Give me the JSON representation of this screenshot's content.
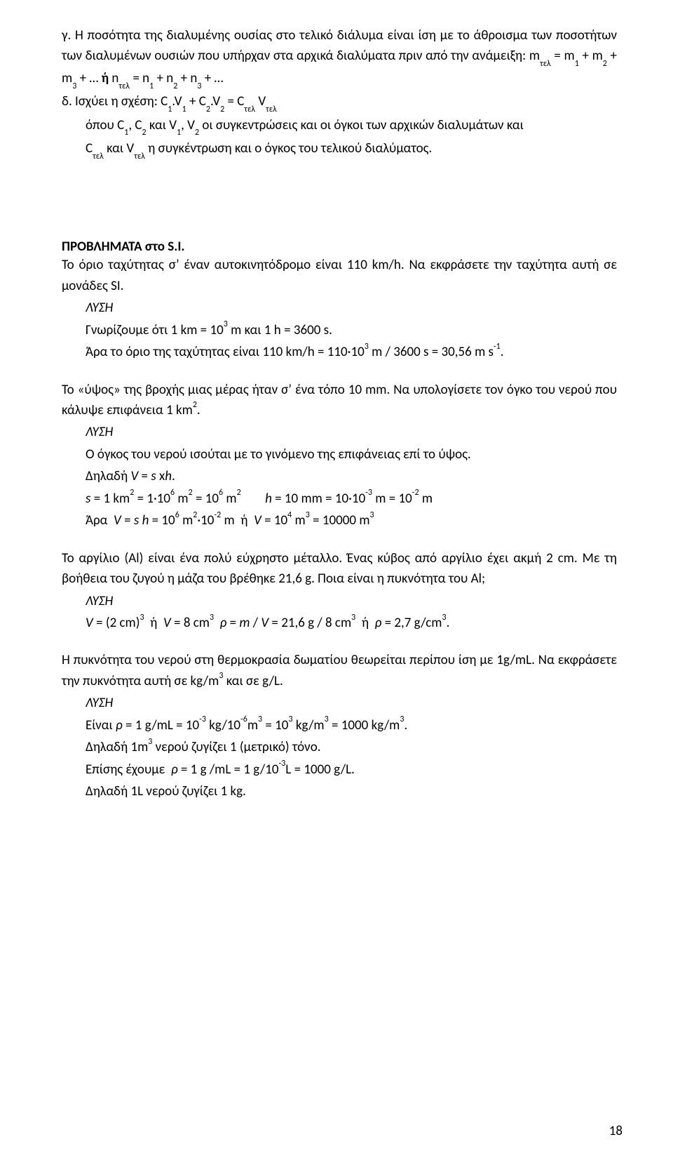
{
  "block_c": {
    "line1": "γ. Η ποσότητα της διαλυμένης ουσίας στο τελικό διάλυμα είναι ίση με το άθροισμα των ποσοτήτων των διαλυμένων ουσιών που υπήρχαν στα αρχικά διαλύματα πριν από την ανάμειξη: m<span class=\"sub\">τελ</span> = m<span class=\"sub\">1</span> + m<span class=\"sub\">2</span> + m<span class=\"sub\">3</span> + …  <b>ή</b>  n<span class=\"sub\">τελ</span> = n<span class=\"sub\">1</span> + n<span class=\"sub\">2</span> + n<span class=\"sub\">3</span> + …"
  },
  "block_d": {
    "line1": "δ. Ισχύει η σχέση: C<span class=\"sub\">1</span>.V<span class=\"sub\">1</span> + C<span class=\"sub\">2</span>.V<span class=\"sub\">2</span> = C<span class=\"sub\">τελ</span>  V<span class=\"sub\">τελ</span>",
    "line2": "όπου C<span class=\"sub\">1</span>, C<span class=\"sub\">2</span> και V<span class=\"sub\">1</span>, V<span class=\"sub\">2</span> οι συγκεντρώσεις και οι όγκοι των αρχικών διαλυμάτων και",
    "line3": "C<span class=\"sub\">τελ</span> και V<span class=\"sub\">τελ</span> η συγκέντρωση και ο όγκος του τελικού διαλύματος."
  },
  "problems_heading": "ΠΡΟΒΛΗΜΑΤΑ στο S.I.",
  "p1": {
    "stmt": "Το όριο ταχύτητας σ’ έναν αυτοκινητόδρομο είναι 110 km/h. Να εκφράσετε την ταχύτητα αυτή σε μονάδες SI.",
    "sol_label": "ΛΥΣΗ",
    "l1": "Γνωρίζουμε ότι 1 km = 10<span class=\"sup\">3</span> m και 1 h = 3600 s.",
    "l2": "Άρα το όριο της ταχύτητας είναι 110 km/h = 110·10<span class=\"sup\">3</span> m / 3600 s = 30,56 m s<span class=\"sup\">-1</span>."
  },
  "p2": {
    "stmt": "Το «ύψος» της βροχής μιας μέρας ήταν σ’ ένα τόπο 10 mm. Να υπολογίσετε τον όγκο του νερού που κάλυψε επιφάνεια 1 km<span class=\"sup\">2</span>.",
    "sol_label": "ΛΥΣΗ",
    "l1": "Ο όγκος του νερού ισούται με το γινόμενο της επιφάνειας επί το ύψος.",
    "l2": "Δηλαδή <span class=\"italic\">V</span> = <span class=\"italic\">s</span> x<span class=\"italic\">h</span>.",
    "l3": "<span class=\"italic\">s</span> = 1 km<span class=\"sup\">2</span> = 1·10<span class=\"sup\">6</span> m<span class=\"sup\">2</span> = 10<span class=\"sup\">6</span> m<span class=\"sup\">2</span>&nbsp;&nbsp;&nbsp;&nbsp;&nbsp;&nbsp;&nbsp;&nbsp;<span class=\"italic\">h</span> = 10 mm = 10·10<span class=\"sup\">-3</span> m = 10<span class=\"sup\">-2</span> m",
    "l4": "Άρα &nbsp;<span class=\"italic\">V</span> = <span class=\"italic\">s h</span> = 10<span class=\"sup\">6</span> m<span class=\"sup\">2</span>·10<span class=\"sup\">-2</span> m &nbsp;ή&nbsp; <span class=\"italic\">V</span> = 10<span class=\"sup\">4</span> m<span class=\"sup\">3</span> = 10000 m<span class=\"sup\">3</span>"
  },
  "p3": {
    "stmt": "Το αργίλιο (Al) είναι ένα πολύ εύχρηστο μέταλλο. Ένας κύβος από αργίλιο έχει ακμή 2 cm. Με τη βοήθεια του ζυγού η μάζα του βρέθηκε 21,6 g. Ποια είναι η πυκνότητα του Al;",
    "sol_label": "ΛΥΣΗ",
    "l1": "<span class=\"italic\">V</span> = (2 cm)<span class=\"sup\">3</span> &nbsp;ή&nbsp; <span class=\"italic\">V</span> = 8 cm<span class=\"sup\">3</span> &nbsp;<span class=\"italic\">ρ</span> = <span class=\"italic\">m</span> / <span class=\"italic\">V</span> = 21,6 g / 8 cm<span class=\"sup\">3</span> &nbsp;ή&nbsp; <span class=\"italic\">ρ</span> = 2,7 g/cm<span class=\"sup\">3</span>."
  },
  "p4": {
    "stmt": "Η πυκνότητα του νερού στη θερμοκρασία δωματίου θεωρείται περίπου ίση με 1g/mL. Να εκφράσετε την πυκνότητα αυτή σε kg/m<span class=\"sup\">3</span> και σε g/L.",
    "sol_label": "ΛΥΣΗ",
    "l1": "Είναι <span class=\"italic\">ρ</span> = 1 g/mL = 10<span class=\"sup\">-3</span> kg/10<span class=\"sup\">-6</span>m<span class=\"sup\">3</span> = 10<span class=\"sup\">3</span> kg/m<span class=\"sup\">3</span> = 1000 kg/m<span class=\"sup\">3</span>.",
    "l2": "Δηλαδή 1m<span class=\"sup\">3</span> νερού ζυγίζει 1 (μετρικό) τόνο.",
    "l3": "Επίσης έχουμε &nbsp;<span class=\"italic\">ρ</span> = 1 g /mL = 1 g/10<span class=\"sup\">-3</span>L = 1000 g/L.",
    "l4": "Δηλαδή 1L νερού ζυγίζει 1 kg."
  },
  "page_number": "18"
}
